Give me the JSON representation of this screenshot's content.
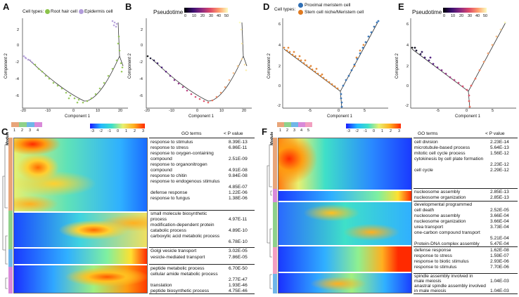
{
  "panels": {
    "A": {
      "label": "A",
      "legend_title": "Cell types:",
      "legend_items": [
        "Root hair cell",
        "Epidermis cell"
      ],
      "colors": [
        "#8bc34a",
        "#b39ddb"
      ],
      "xlabel": "Component 1",
      "ylabel": "Component 2",
      "xticks": [
        "-20",
        "-10",
        "0",
        "10",
        "20"
      ],
      "yticks": [
        "2",
        "0",
        "-2",
        "-4",
        "-6"
      ]
    },
    "B": {
      "label": "B",
      "legend_title": "Pseudotime",
      "cb_ticks": [
        "0",
        "10",
        "20",
        "30",
        "40",
        "50"
      ],
      "xlabel": "Component 1",
      "ylabel": "Component 2",
      "xticks": [
        "-20",
        "-10",
        "0",
        "10",
        "20"
      ],
      "yticks": [
        "2",
        "0",
        "-2",
        "-4",
        "-6"
      ]
    },
    "D": {
      "label": "D",
      "legend_title": "Cell types:",
      "legend_items": [
        "Proximal meristem cell",
        "Stem cell niche/Meristem cell"
      ],
      "colors": [
        "#2f6fb5",
        "#e07a20"
      ],
      "xlabel": "Component 1",
      "ylabel": "Component 2",
      "xticks": [
        "-5",
        "0",
        "5"
      ],
      "yticks": [
        "6",
        "4",
        "2",
        "0",
        "-2"
      ]
    },
    "E": {
      "label": "E",
      "legend_title": "Pseudotime",
      "cb_ticks": [
        "0",
        "10",
        "20",
        "30",
        "40",
        "50"
      ],
      "xlabel": "Component 1",
      "ylabel": "Component 2",
      "xticks": [
        "-5",
        "0",
        "5"
      ],
      "yticks": [
        "6",
        "4",
        "2",
        "0",
        "-2"
      ]
    },
    "C": {
      "label": "C",
      "module_label": "Module",
      "module_nums": [
        "1",
        "2",
        "3",
        "4"
      ],
      "module_colors": [
        "#e8a57a",
        "#8fd18a",
        "#6fb6e8",
        "#d98ad9"
      ],
      "cb_ticks": [
        "-3",
        "-2",
        "-1",
        "0",
        "1",
        "2",
        "3"
      ],
      "header_terms": "GO terms",
      "header_p": "< P value",
      "rows": [
        {
          "term": "response to stimulus",
          "p": "8.39E-13"
        },
        {
          "term": "response to stress",
          "p": "6.86E-11"
        },
        {
          "term": "response to oxygen-containing",
          "p": ""
        },
        {
          "term": "compound",
          "p": "2.51E-09"
        },
        {
          "term": "response to organonitrogen",
          "p": ""
        },
        {
          "term": "compound",
          "p": "4.91E-08"
        },
        {
          "term": "response to chitin",
          "p": "9.84E-08"
        },
        {
          "term": "response to endogenous stimulus",
          "p": ""
        },
        {
          "term": "",
          "p": "4.85E-07"
        },
        {
          "term": "defense response",
          "p": "1.22E-06"
        },
        {
          "term": "response to fungus",
          "p": "1.38E-06"
        },
        {
          "term": "small molecule biosynthetic",
          "p": ""
        },
        {
          "term": "process",
          "p": "4.97E-11"
        },
        {
          "term": "modification-dependent protein",
          "p": ""
        },
        {
          "term": "catabolic process",
          "p": "4.89E-10"
        },
        {
          "term": "carboxylic acid metabolic process",
          "p": ""
        },
        {
          "term": "",
          "p": "6.78E-10"
        },
        {
          "term": "Golgi vesicle transport",
          "p": "3.02E-05"
        },
        {
          "term": "vesicle-mediated transport",
          "p": "7.86E-05"
        },
        {
          "term": "peptide metabolic process",
          "p": "6.70E-50"
        },
        {
          "term": "cellular amide metabolic process",
          "p": ""
        },
        {
          "term": "",
          "p": "2.77E-47"
        },
        {
          "term": "translation",
          "p": "1.93E-46"
        },
        {
          "term": "peptide biosynthetic process",
          "p": "4.75E-46"
        }
      ]
    },
    "F": {
      "label": "F",
      "module_label": "Module",
      "module_nums": [
        "1",
        "2",
        "3",
        "4",
        "5"
      ],
      "module_colors": [
        "#e8a57a",
        "#8fd18a",
        "#6fb6e8",
        "#d98ad9",
        "#f29fc0"
      ],
      "cb_ticks": [
        "-3",
        "-2",
        "-1",
        "0",
        "1",
        "2",
        "3"
      ],
      "header_terms": "GO terms",
      "header_p": "< P value",
      "rows": [
        {
          "term": "cell division",
          "p": "2.23E-14"
        },
        {
          "term": "microtubule-based process",
          "p": "5.64E-13"
        },
        {
          "term": "mitotic cell cycle process",
          "p": "1.56E-12"
        },
        {
          "term": "cytokinesis by cell plate formation",
          "p": ""
        },
        {
          "term": "",
          "p": "2.23E-12"
        },
        {
          "term": "cell cycle",
          "p": "2.29E-12"
        },
        {
          "term": "nucleosome assembly",
          "p": "2.85E-13"
        },
        {
          "term": "nucleosome organization",
          "p": "2.85E-13"
        },
        {
          "term": "developmental programmed",
          "p": ""
        },
        {
          "term": "cell death",
          "p": "2.52E-05"
        },
        {
          "term": "nucleosome assembly",
          "p": "3.66E-04"
        },
        {
          "term": "nucleosome organization",
          "p": "3.66E-04"
        },
        {
          "term": "urea transport",
          "p": "3.73E-04"
        },
        {
          "term": "one-carbon compound transport",
          "p": ""
        },
        {
          "term": "",
          "p": "5.21E-04"
        },
        {
          "term": "Protein-DNA complex assembly",
          "p": ""
        },
        {
          "term": "",
          "p": "5.47E-04"
        },
        {
          "term": "defense response",
          "p": "1.62E-08"
        },
        {
          "term": "response to stress",
          "p": "1.59E-07"
        },
        {
          "term": "response to biotic stimulus",
          "p": "2.93E-06"
        },
        {
          "term": "response to stimulus",
          "p": "7.70E-06"
        },
        {
          "term": "spindle assembly involved in",
          "p": ""
        },
        {
          "term": "male meiosis",
          "p": "1.04E-03"
        },
        {
          "term": "anastral spindle assembly involved",
          "p": ""
        },
        {
          "term": "in male meiosis",
          "p": "1.04E-03"
        }
      ]
    }
  }
}
